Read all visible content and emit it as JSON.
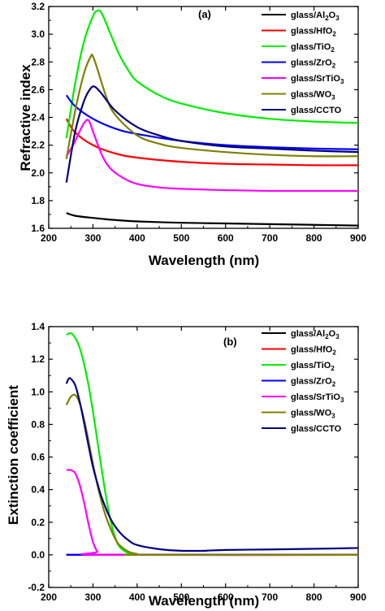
{
  "chart_data": [
    {
      "type": "line",
      "panel_label": "(a)",
      "xlabel": "Wavelength (nm)",
      "ylabel": "Refractive index",
      "xlim": [
        200,
        900
      ],
      "ylim": [
        1.6,
        3.2
      ],
      "xticks": [
        200,
        300,
        400,
        500,
        600,
        700,
        800,
        900
      ],
      "yticks": [
        1.6,
        1.8,
        2.0,
        2.2,
        2.4,
        2.6,
        2.8,
        3.0,
        3.2
      ],
      "ytick_labels": [
        "1.6",
        "1.8",
        "2.0",
        "2.2",
        "2.4",
        "2.6",
        "2.8",
        "3.0",
        "3.2"
      ],
      "grid": false,
      "legend_position": "top-right",
      "series": [
        {
          "name": "glass/Al₂O₃",
          "color": "#000000",
          "x": [
            240,
            260,
            300,
            350,
            400,
            500,
            600,
            700,
            800,
            900
          ],
          "y": [
            1.71,
            1.69,
            1.675,
            1.66,
            1.65,
            1.64,
            1.635,
            1.63,
            1.625,
            1.62
          ]
        },
        {
          "name": "glass/HfO₂",
          "color": "#ff0000",
          "x": [
            240,
            260,
            300,
            350,
            400,
            500,
            600,
            700,
            800,
            900
          ],
          "y": [
            2.39,
            2.29,
            2.2,
            2.14,
            2.11,
            2.08,
            2.065,
            2.06,
            2.055,
            2.055
          ]
        },
        {
          "name": "glass/TiO₂",
          "color": "#00ee00",
          "x": [
            240,
            260,
            280,
            300,
            310,
            320,
            340,
            360,
            380,
            400,
            450,
            500,
            600,
            700,
            800,
            900
          ],
          "y": [
            2.25,
            2.65,
            2.95,
            3.13,
            3.17,
            3.15,
            3.0,
            2.85,
            2.74,
            2.66,
            2.56,
            2.5,
            2.43,
            2.39,
            2.37,
            2.36
          ]
        },
        {
          "name": "glass/ZrO₂",
          "color": "#0000ff",
          "x": [
            240,
            260,
            300,
            350,
            400,
            500,
            600,
            700,
            800,
            900
          ],
          "y": [
            2.56,
            2.48,
            2.39,
            2.32,
            2.28,
            2.23,
            2.2,
            2.185,
            2.175,
            2.17
          ]
        },
        {
          "name": "glass/SrTiO₃",
          "color": "#ff00ff",
          "x": [
            240,
            255,
            270,
            280,
            290,
            300,
            320,
            340,
            370,
            400,
            450,
            500,
            600,
            700,
            800,
            900
          ],
          "y": [
            2.12,
            2.2,
            2.3,
            2.36,
            2.38,
            2.3,
            2.13,
            2.03,
            1.96,
            1.92,
            1.895,
            1.885,
            1.875,
            1.87,
            1.87,
            1.87
          ]
        },
        {
          "name": "glass/WO₃",
          "color": "#808000",
          "x": [
            240,
            260,
            280,
            295,
            300,
            310,
            330,
            350,
            400,
            450,
            500,
            600,
            700,
            800,
            900
          ],
          "y": [
            2.1,
            2.45,
            2.72,
            2.84,
            2.84,
            2.75,
            2.55,
            2.42,
            2.27,
            2.21,
            2.18,
            2.15,
            2.13,
            2.12,
            2.12
          ]
        },
        {
          "name": "glass/CCTO",
          "color": "#000080",
          "x": [
            240,
            260,
            280,
            295,
            305,
            320,
            350,
            400,
            450,
            500,
            600,
            700,
            800,
            900
          ],
          "y": [
            1.93,
            2.3,
            2.52,
            2.61,
            2.62,
            2.57,
            2.45,
            2.33,
            2.27,
            2.23,
            2.19,
            2.175,
            2.16,
            2.15
          ]
        }
      ]
    },
    {
      "type": "line",
      "panel_label": "(b)",
      "xlabel": "Wavelength (nm)",
      "ylabel": "Extinction coefficient",
      "xlim": [
        200,
        900
      ],
      "ylim": [
        -0.2,
        1.4
      ],
      "xticks": [
        200,
        300,
        400,
        500,
        600,
        700,
        800,
        900
      ],
      "yticks": [
        -0.2,
        0.0,
        0.2,
        0.4,
        0.6,
        0.8,
        1.0,
        1.2,
        1.4
      ],
      "ytick_labels": [
        "-0.2",
        "0.0",
        "0.2",
        "0.4",
        "0.6",
        "0.8",
        "1.0",
        "1.2",
        "1.4"
      ],
      "grid": false,
      "legend_position": "top-right",
      "series": [
        {
          "name": "glass/Al₂O₃",
          "color": "#000000",
          "x": [
            240,
            900
          ],
          "y": [
            0.0,
            0.0
          ]
        },
        {
          "name": "glass/HfO₂",
          "color": "#ff0000",
          "x": [
            240,
            900
          ],
          "y": [
            0.0,
            0.0
          ]
        },
        {
          "name": "glass/TiO₂",
          "color": "#00ee00",
          "x": [
            240,
            250,
            260,
            270,
            280,
            290,
            300,
            310,
            320,
            330,
            340,
            350,
            360,
            380,
            400,
            420,
            900
          ],
          "y": [
            1.35,
            1.36,
            1.33,
            1.27,
            1.17,
            1.04,
            0.88,
            0.7,
            0.52,
            0.35,
            0.21,
            0.11,
            0.05,
            0.01,
            0.0,
            0.0,
            0.0
          ]
        },
        {
          "name": "glass/ZrO₂",
          "color": "#0000ff",
          "x": [
            240,
            900
          ],
          "y": [
            0.0,
            0.0
          ]
        },
        {
          "name": "glass/SrTiO₃",
          "color": "#ff00ff",
          "x": [
            240,
            250,
            260,
            270,
            280,
            290,
            300,
            310,
            320,
            900
          ],
          "y": [
            0.52,
            0.52,
            0.5,
            0.43,
            0.32,
            0.19,
            0.08,
            0.02,
            0.0,
            0.0
          ]
        },
        {
          "name": "glass/WO₃",
          "color": "#808000",
          "x": [
            240,
            250,
            260,
            270,
            280,
            290,
            300,
            310,
            320,
            330,
            340,
            350,
            360,
            380,
            400,
            410,
            900
          ],
          "y": [
            0.92,
            0.97,
            0.98,
            0.93,
            0.83,
            0.7,
            0.56,
            0.43,
            0.32,
            0.23,
            0.16,
            0.1,
            0.06,
            0.02,
            0.005,
            0.0,
            0.0
          ]
        },
        {
          "name": "glass/CCTO",
          "color": "#000080",
          "x": [
            240,
            245,
            250,
            260,
            270,
            280,
            290,
            300,
            310,
            320,
            340,
            360,
            380,
            400,
            450,
            500,
            550,
            600,
            700,
            800,
            900
          ],
          "y": [
            1.05,
            1.08,
            1.08,
            1.04,
            0.94,
            0.81,
            0.67,
            0.54,
            0.44,
            0.35,
            0.22,
            0.14,
            0.09,
            0.06,
            0.035,
            0.025,
            0.025,
            0.03,
            0.033,
            0.037,
            0.042
          ]
        }
      ]
    }
  ]
}
